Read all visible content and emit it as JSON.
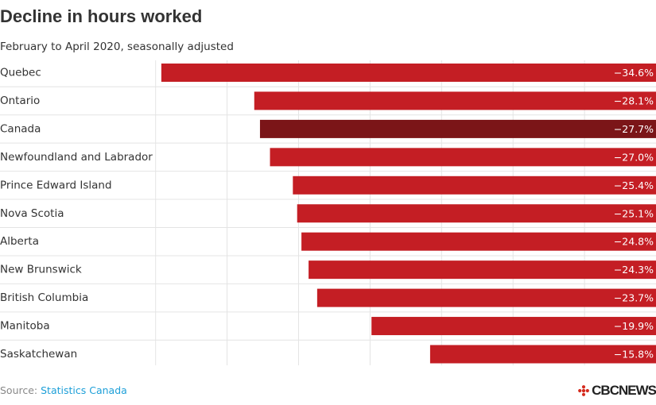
{
  "header": {
    "title": "Decline in hours worked",
    "subtitle": "February to April 2020, seasonally adjusted"
  },
  "footer": {
    "source_label": "Source: ",
    "source_link": "Statistics Canada",
    "logo_text": "CBCNEWS"
  },
  "colors": {
    "bar": "#c41e24",
    "highlight": "#7b1518",
    "label_on_bar": "#ffffff",
    "grid": "#e4e4e4"
  },
  "chart_data": {
    "type": "bar",
    "orientation": "horizontal",
    "title": "Decline in hours worked",
    "subtitle": "February to April 2020, seasonally adjusted",
    "xlabel": "",
    "ylabel": "",
    "xlim": [
      -38,
      0
    ],
    "categories": [
      "Quebec",
      "Ontario",
      "Canada",
      "Newfoundland and Labrador",
      "Prince Edward Island",
      "Nova Scotia",
      "Alberta",
      "New Brunswick",
      "British Columbia",
      "Manitoba",
      "Saskatchewan"
    ],
    "values": [
      -34.6,
      -28.1,
      -27.7,
      -27.0,
      -25.4,
      -25.1,
      -24.8,
      -24.3,
      -23.7,
      -19.9,
      -15.8
    ],
    "value_labels": [
      "−34.6%",
      "−28.1%",
      "−27.7%",
      "−27.0%",
      "−25.4%",
      "−25.1%",
      "−24.8%",
      "−24.3%",
      "−23.7%",
      "−19.9%",
      "−15.8%"
    ],
    "highlighted_category": "Canada",
    "source": "Statistics Canada"
  }
}
